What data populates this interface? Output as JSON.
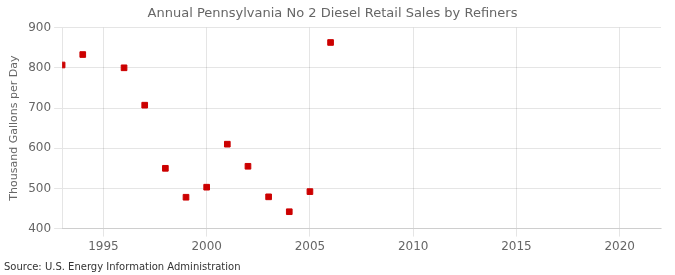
{
  "chart_data": {
    "type": "scatter",
    "title": "Annual Pennsylvania No 2 Diesel Retail Sales by Refiners",
    "ylabel": "Thousand Gallons per Day",
    "annotations": [
      "Source: U.S. Energy Information Administration"
    ],
    "x": [
      1993,
      1994,
      1996,
      1997,
      1998,
      1999,
      2000,
      2001,
      2002,
      2003,
      2004,
      2005,
      2006
    ],
    "values": [
      807,
      833,
      800,
      707,
      550,
      478,
      503,
      610,
      555,
      479,
      442,
      492,
      863
    ],
    "color": "#cc0000",
    "marker": "square",
    "xlim": [
      1993,
      2022
    ],
    "ylim": [
      400,
      900
    ],
    "xticks": [
      1995,
      2000,
      2005,
      2010,
      2015,
      2020
    ],
    "yticks": [
      400,
      500,
      600,
      700,
      800,
      900
    ],
    "grid": true
  }
}
